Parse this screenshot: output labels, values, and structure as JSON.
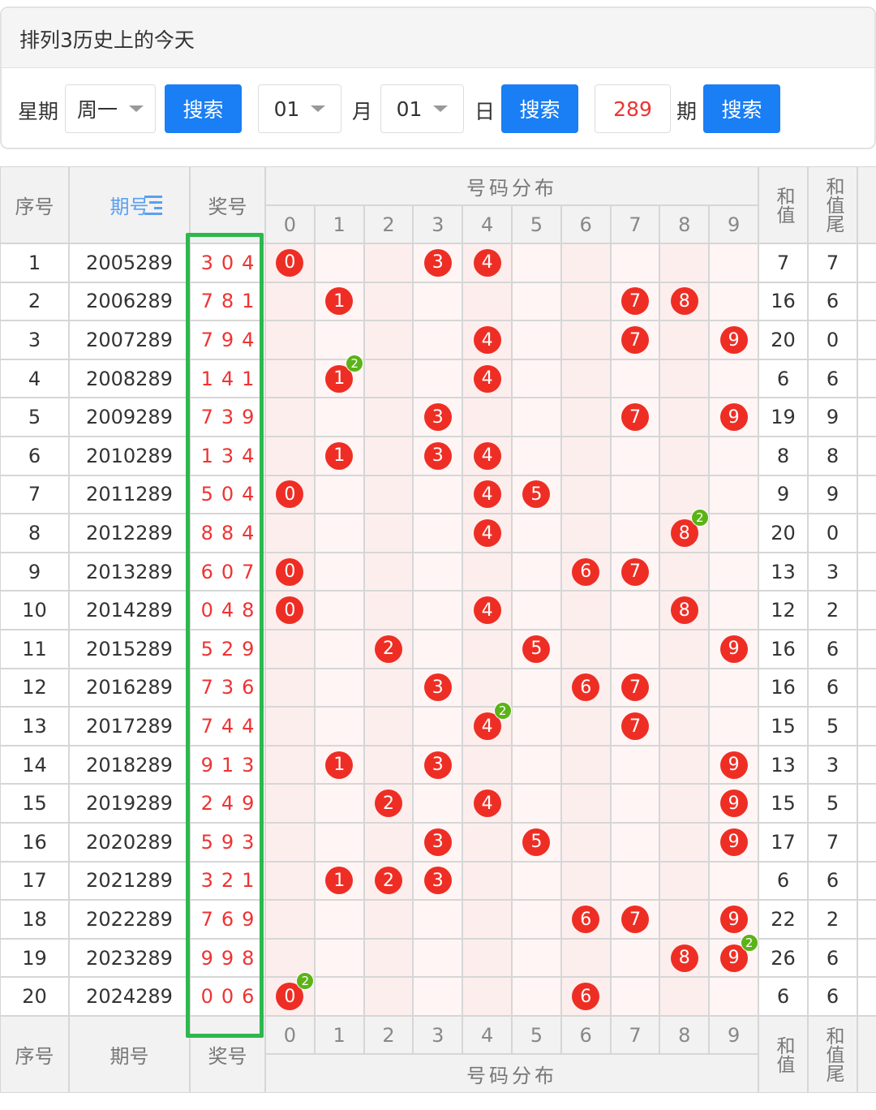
{
  "header": {
    "title": "排列3历史上的今天"
  },
  "controls": {
    "weekday_label": "星期",
    "weekday": "周一",
    "search": "搜索",
    "month": "01",
    "month_label": "月",
    "day": "01",
    "day_label": "日",
    "issue": "289",
    "issue_label": "期"
  },
  "table": {
    "columns": [
      "序号",
      "期号",
      "奖号",
      "号码分布",
      "和值",
      "和值尾"
    ],
    "digits": [
      0,
      1,
      2,
      3,
      4,
      5,
      6,
      7,
      8,
      9
    ],
    "rows": [
      {
        "no": 1,
        "issue": 2005289,
        "draw": [
          3,
          0,
          4
        ],
        "sum": 7,
        "tail": 7
      },
      {
        "no": 2,
        "issue": 2006289,
        "draw": [
          7,
          8,
          1
        ],
        "sum": 16,
        "tail": 6
      },
      {
        "no": 3,
        "issue": 2007289,
        "draw": [
          7,
          9,
          4
        ],
        "sum": 20,
        "tail": 0
      },
      {
        "no": 4,
        "issue": 2008289,
        "draw": [
          1,
          4,
          1
        ],
        "sum": 6,
        "tail": 6,
        "repeat": 2
      },
      {
        "no": 5,
        "issue": 2009289,
        "draw": [
          7,
          3,
          9
        ],
        "sum": 19,
        "tail": 9
      },
      {
        "no": 6,
        "issue": 2010289,
        "draw": [
          1,
          3,
          4
        ],
        "sum": 8,
        "tail": 8
      },
      {
        "no": 7,
        "issue": 2011289,
        "draw": [
          5,
          0,
          4
        ],
        "sum": 9,
        "tail": 9
      },
      {
        "no": 8,
        "issue": 2012289,
        "draw": [
          8,
          8,
          4
        ],
        "sum": 20,
        "tail": 0,
        "repeat": 2
      },
      {
        "no": 9,
        "issue": 2013289,
        "draw": [
          6,
          0,
          7
        ],
        "sum": 13,
        "tail": 3
      },
      {
        "no": 10,
        "issue": 2014289,
        "draw": [
          0,
          4,
          8
        ],
        "sum": 12,
        "tail": 2
      },
      {
        "no": 11,
        "issue": 2015289,
        "draw": [
          5,
          2,
          9
        ],
        "sum": 16,
        "tail": 6
      },
      {
        "no": 12,
        "issue": 2016289,
        "draw": [
          7,
          3,
          6
        ],
        "sum": 16,
        "tail": 6
      },
      {
        "no": 13,
        "issue": 2017289,
        "draw": [
          7,
          4,
          4
        ],
        "sum": 15,
        "tail": 5,
        "repeat": 2
      },
      {
        "no": 14,
        "issue": 2018289,
        "draw": [
          9,
          1,
          3
        ],
        "sum": 13,
        "tail": 3
      },
      {
        "no": 15,
        "issue": 2019289,
        "draw": [
          2,
          4,
          9
        ],
        "sum": 15,
        "tail": 5
      },
      {
        "no": 16,
        "issue": 2020289,
        "draw": [
          5,
          9,
          3
        ],
        "sum": 17,
        "tail": 7
      },
      {
        "no": 17,
        "issue": 2021289,
        "draw": [
          3,
          2,
          1
        ],
        "sum": 6,
        "tail": 6
      },
      {
        "no": 18,
        "issue": 2022289,
        "draw": [
          7,
          6,
          9
        ],
        "sum": 22,
        "tail": 2
      },
      {
        "no": 19,
        "issue": 2023289,
        "draw": [
          9,
          9,
          8
        ],
        "sum": 26,
        "tail": 6,
        "repeat": 2
      },
      {
        "no": 20,
        "issue": 2024289,
        "draw": [
          0,
          0,
          6
        ],
        "sum": 6,
        "tail": 6,
        "repeat": 2
      }
    ]
  }
}
